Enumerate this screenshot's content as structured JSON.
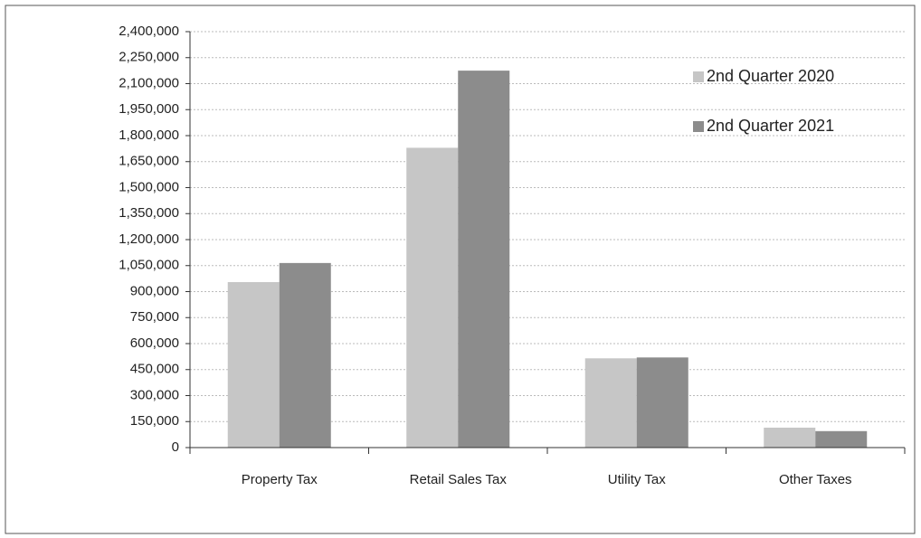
{
  "chart_data": {
    "type": "bar",
    "categories": [
      "Property Tax",
      "Retail Sales Tax",
      "Utility Tax",
      "Other Taxes"
    ],
    "series": [
      {
        "name": "2nd Quarter 2020",
        "color": "#c6c6c6",
        "values": [
          955000,
          1730000,
          515000,
          115000
        ]
      },
      {
        "name": "2nd Quarter 2021",
        "color": "#8c8c8c",
        "values": [
          1065000,
          2175000,
          520000,
          95000
        ]
      }
    ],
    "ylim": [
      0,
      2400000
    ],
    "yticks": [
      0,
      {
        "value": 150000,
        "label": "150,000"
      },
      {
        "value": 300000,
        "label": "300,000"
      },
      {
        "value": 450000,
        "label": "450,000"
      },
      {
        "value": 600000,
        "label": "600,000"
      },
      {
        "value": 750000,
        "label": "750,000"
      },
      {
        "value": 900000,
        "label": "900,000"
      },
      {
        "value": 1050000,
        "label": "1,050,000"
      },
      {
        "value": 1200000,
        "label": "1,200,000"
      },
      {
        "value": 1350000,
        "label": "1,350,000"
      },
      {
        "value": 1500000,
        "label": "1,500,000"
      },
      {
        "value": 1650000,
        "label": "1,650,000"
      },
      {
        "value": 1800000,
        "label": "1,800,000"
      },
      {
        "value": 1950000,
        "label": "1,950,000"
      },
      {
        "value": 2100000,
        "label": "2,100,000"
      },
      {
        "value": 2250000,
        "label": "2,250,000"
      },
      {
        "value": 2400000,
        "label": "2,400,000"
      }
    ],
    "grid": true,
    "legend": "upper right"
  }
}
